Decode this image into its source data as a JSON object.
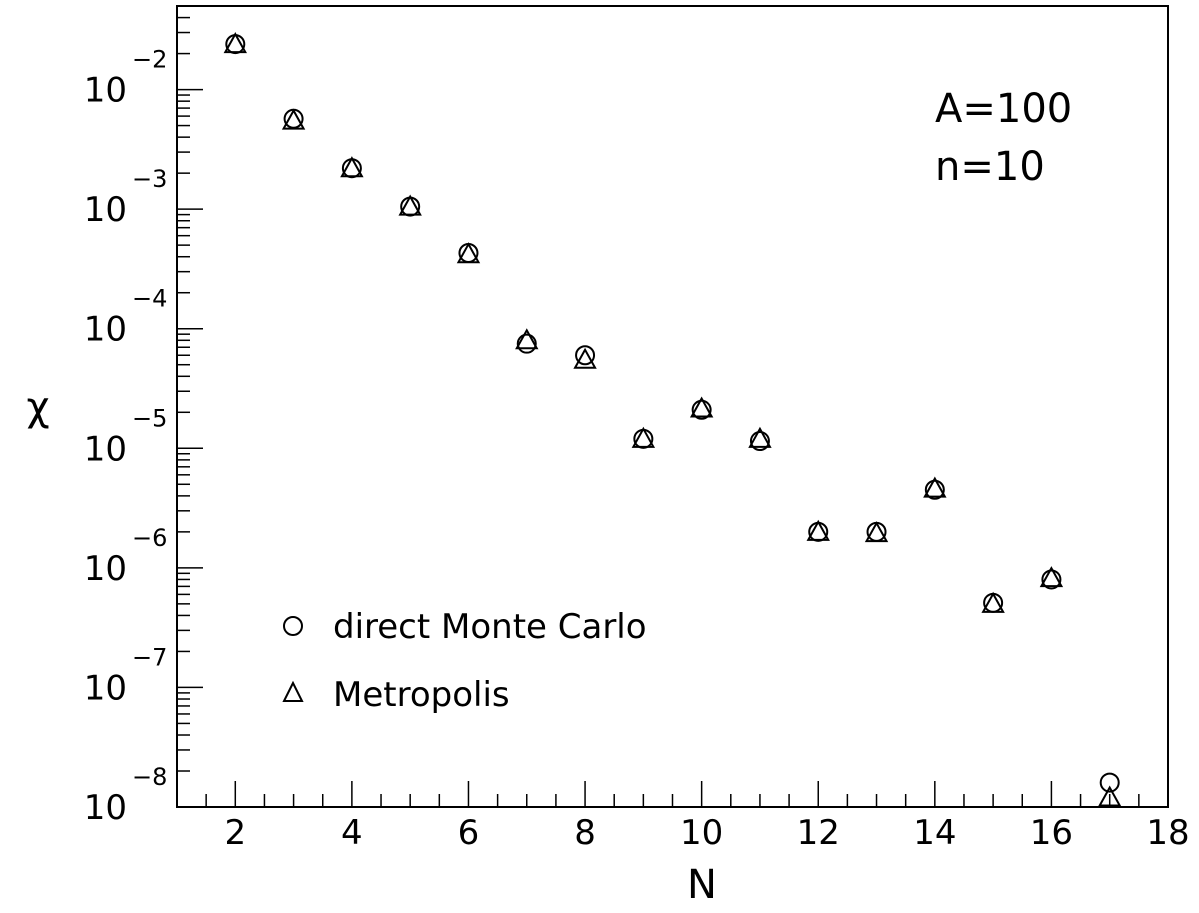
{
  "chart_data": {
    "type": "scatter",
    "title": "",
    "xlabel": "N",
    "ylabel": "χ",
    "x_scale": "linear",
    "y_scale": "log",
    "xlim": [
      1,
      18
    ],
    "ylim": [
      1e-08,
      0.05
    ],
    "x_ticks": [
      2,
      4,
      6,
      8,
      10,
      12,
      14,
      16,
      18
    ],
    "x_tick_labels": [
      "2",
      "4",
      "6",
      "8",
      "10",
      "12",
      "14",
      "16",
      "18"
    ],
    "y_ticks": [
      1e-08,
      1e-07,
      1e-06,
      1e-05,
      0.0001,
      0.001,
      0.01
    ],
    "y_tick_base": "10",
    "y_tick_exponents": [
      "−8",
      "−7",
      "−6",
      "−5",
      "−4",
      "−3",
      "−2"
    ],
    "grid": false,
    "legend_position": "bottom-left",
    "annotations": [
      "A=100",
      "n=10"
    ],
    "series": [
      {
        "name": "direct Monte Carlo",
        "marker": "circle",
        "color": "#000000",
        "x": [
          2,
          3,
          4,
          5,
          6,
          7,
          8,
          9,
          10,
          11,
          12,
          13,
          14,
          15,
          16,
          17
        ],
        "values": [
          0.024,
          0.0057,
          0.0022,
          0.00105,
          0.00043,
          7.5e-05,
          6e-05,
          1.2e-05,
          2.1e-05,
          1.15e-05,
          2e-06,
          2e-06,
          4.5e-06,
          5.1e-07,
          8e-07,
          1.6e-08
        ]
      },
      {
        "name": "Metropolis",
        "marker": "triangle",
        "color": "#000000",
        "x": [
          2,
          3,
          4,
          5,
          6,
          7,
          8,
          9,
          10,
          11,
          12,
          13,
          14,
          15,
          16,
          17
        ],
        "values": [
          0.024,
          0.0055,
          0.0022,
          0.00105,
          0.00042,
          8e-05,
          5.5e-05,
          1.2e-05,
          2.15e-05,
          1.2e-05,
          2e-06,
          1.95e-06,
          4.6e-06,
          5e-07,
          8.2e-07,
          1.2e-08
        ]
      }
    ]
  }
}
